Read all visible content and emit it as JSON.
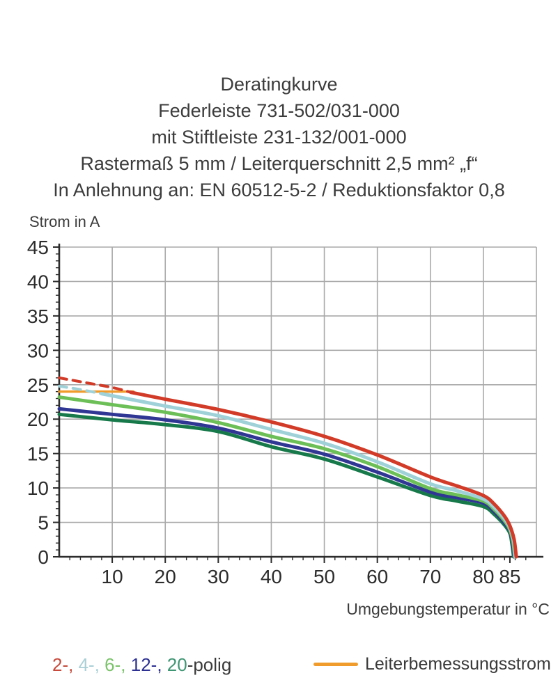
{
  "title": {
    "line1": "Deratingkurve",
    "line2": "Federleiste 731-502/031-000",
    "line3": "mit Stiftleiste 231-132/001-000",
    "line4": "Rastermaß 5 mm / Leiterquerschnitt 2,5 mm² „f“",
    "line5": "In Anlehnung an: EN 60512-5-2 / Reduktionsfaktor 0,8"
  },
  "axes": {
    "y_title": "Strom in A",
    "x_title": "Umgebungstemperatur in °C"
  },
  "legend": {
    "poles": [
      {
        "text": "2-, ",
        "color": "#c74a3c"
      },
      {
        "text": "4-, ",
        "color": "#a9cfd6"
      },
      {
        "text": "6-, ",
        "color": "#7cc36c"
      },
      {
        "text": "12-, ",
        "color": "#2e3192"
      },
      {
        "text": "20",
        "color": "#3f9674"
      },
      {
        "text": "-polig",
        "color": "#3a3a3a"
      }
    ],
    "rated_current_label": "Leiterbemessungsstrom",
    "rated_current_color": "#f09c2d"
  },
  "chart_data": {
    "type": "line",
    "title": "Deratingkurve Federleiste 731-502/031-000 mit Stiftleiste 231-132/001-000",
    "xlabel": "Umgebungstemperatur in °C",
    "ylabel": "Strom in A",
    "xlim": [
      0,
      90
    ],
    "ylim": [
      0,
      45
    ],
    "xticks": [
      10,
      20,
      30,
      40,
      50,
      60,
      70,
      80,
      85
    ],
    "yticks": [
      0,
      5,
      10,
      15,
      20,
      25,
      30,
      35,
      40,
      45
    ],
    "x_gridlines": [
      10,
      20,
      30,
      40,
      50,
      60,
      70,
      80,
      90
    ],
    "y_gridlines": [
      5,
      10,
      15,
      20,
      25,
      30,
      35,
      40,
      45
    ],
    "grid": true,
    "legend_position": "bottom",
    "series": [
      {
        "name": "2-polig",
        "color": "#d23b28",
        "line_width": 5,
        "dashed_points": [
          [
            0,
            26.0
          ],
          [
            5,
            25.3
          ],
          [
            10,
            24.6
          ],
          [
            13.5,
            23.9
          ]
        ],
        "points": [
          [
            13.5,
            23.9
          ],
          [
            20,
            22.9
          ],
          [
            30,
            21.4
          ],
          [
            40,
            19.6
          ],
          [
            50,
            17.5
          ],
          [
            60,
            14.8
          ],
          [
            70,
            11.6
          ],
          [
            75,
            10.3
          ],
          [
            80,
            8.9
          ],
          [
            82,
            7.7
          ],
          [
            84,
            5.9
          ],
          [
            85,
            4.5
          ],
          [
            85.8,
            2.5
          ],
          [
            86.2,
            0
          ]
        ]
      },
      {
        "name": "4-polig",
        "color": "#9ed1d8",
        "line_width": 5,
        "dashed_points": [
          [
            0,
            24.8
          ],
          [
            4,
            24.3
          ],
          [
            8,
            23.7
          ]
        ],
        "points": [
          [
            8,
            23.7
          ],
          [
            20,
            21.9
          ],
          [
            30,
            20.5
          ],
          [
            40,
            18.5
          ],
          [
            50,
            16.5
          ],
          [
            60,
            13.8
          ],
          [
            70,
            10.6
          ],
          [
            75,
            9.6
          ],
          [
            80,
            8.4
          ],
          [
            82,
            7.2
          ],
          [
            84,
            5.5
          ],
          [
            85,
            4.2
          ],
          [
            85.7,
            2.3
          ],
          [
            86,
            0
          ]
        ]
      },
      {
        "name": "6-polig",
        "color": "#6cbf57",
        "line_width": 5,
        "points": [
          [
            0,
            23.2
          ],
          [
            10,
            22.1
          ],
          [
            20,
            21.0
          ],
          [
            30,
            19.5
          ],
          [
            40,
            17.5
          ],
          [
            50,
            15.7
          ],
          [
            60,
            13.1
          ],
          [
            70,
            9.9
          ],
          [
            75,
            9.0
          ],
          [
            80,
            8.1
          ],
          [
            82,
            6.9
          ],
          [
            84,
            5.2
          ],
          [
            85,
            3.9
          ],
          [
            85.6,
            2.1
          ],
          [
            85.9,
            0
          ]
        ]
      },
      {
        "name": "12-polig",
        "color": "#2f3693",
        "line_width": 5,
        "points": [
          [
            0,
            21.5
          ],
          [
            10,
            20.7
          ],
          [
            20,
            19.9
          ],
          [
            30,
            18.7
          ],
          [
            40,
            16.7
          ],
          [
            50,
            14.9
          ],
          [
            60,
            12.3
          ],
          [
            70,
            9.4
          ],
          [
            75,
            8.6
          ],
          [
            80,
            7.8
          ],
          [
            82,
            6.6
          ],
          [
            84,
            4.9
          ],
          [
            85,
            3.7
          ],
          [
            85.5,
            2.0
          ],
          [
            85.8,
            0
          ]
        ]
      },
      {
        "name": "20-polig",
        "color": "#17794a",
        "line_width": 5,
        "points": [
          [
            0,
            20.7
          ],
          [
            10,
            19.9
          ],
          [
            20,
            19.2
          ],
          [
            30,
            18.2
          ],
          [
            40,
            16.0
          ],
          [
            50,
            14.2
          ],
          [
            60,
            11.6
          ],
          [
            70,
            8.9
          ],
          [
            75,
            8.1
          ],
          [
            80,
            7.3
          ],
          [
            82,
            6.2
          ],
          [
            84,
            4.6
          ],
          [
            85,
            3.4
          ],
          [
            85.4,
            1.8
          ],
          [
            85.7,
            0
          ]
        ]
      },
      {
        "name": "Leiterbemessungsstrom",
        "color": "#f09c2d",
        "line_width": 3.5,
        "points": [
          [
            0,
            24
          ],
          [
            14,
            24
          ]
        ]
      }
    ]
  }
}
